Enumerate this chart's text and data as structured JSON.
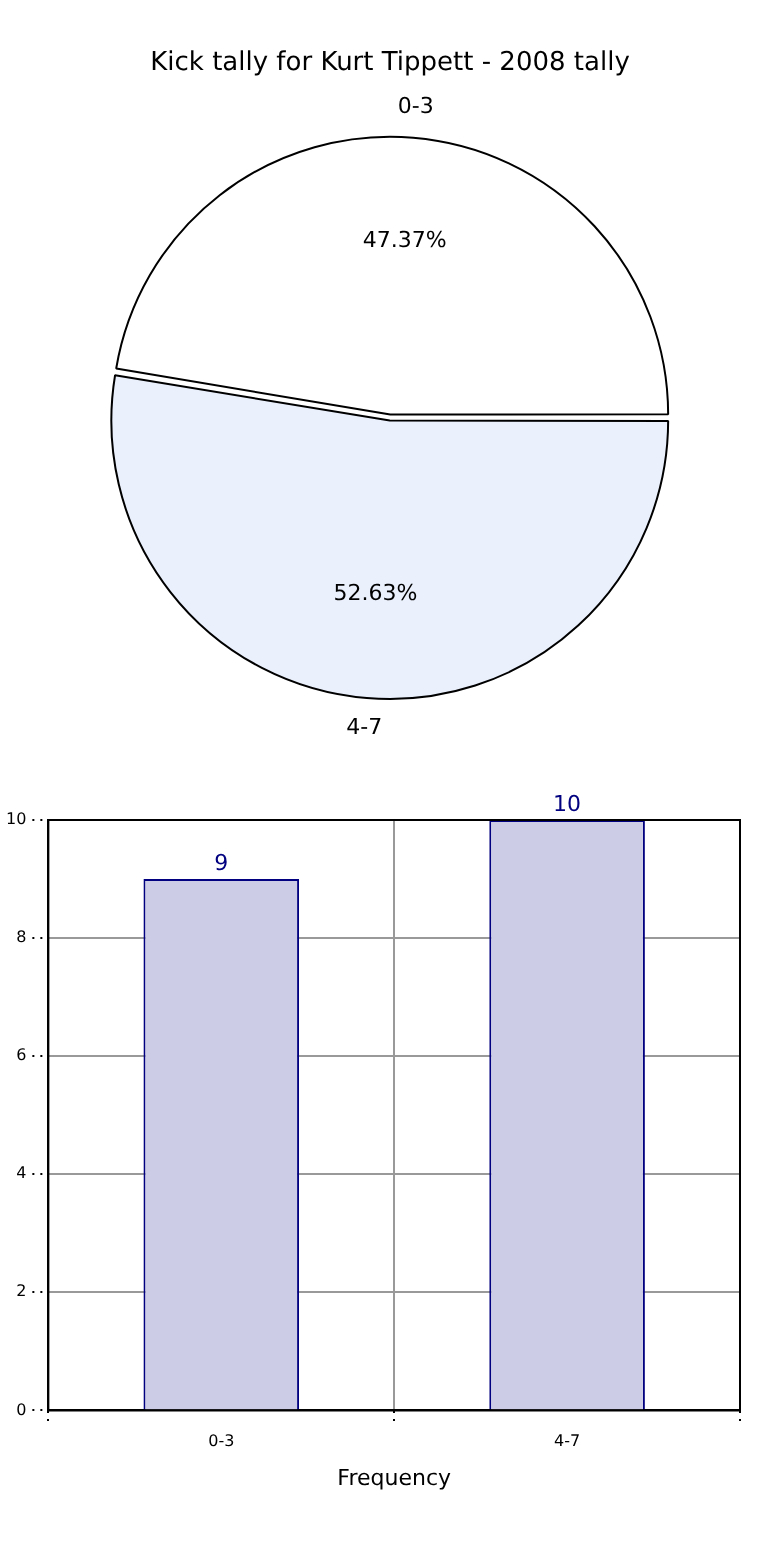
{
  "chart_data": [
    {
      "type": "pie",
      "title": "Kick tally for Kurt Tippett - 2008 tally",
      "categories": [
        "0-3",
        "4-7"
      ],
      "values": [
        47.37,
        52.63
      ],
      "colors": [
        "#ffffff",
        "#eaf0fc"
      ],
      "value_labels": [
        "47.37%",
        "52.63%"
      ],
      "legend": false
    },
    {
      "type": "bar",
      "xlabel": "Frequency",
      "categories": [
        "0-3",
        "4-7"
      ],
      "values": [
        9,
        10
      ],
      "color": "#cccce6",
      "ylim": [
        0,
        10
      ],
      "yticks": [
        0,
        2,
        4,
        6,
        8,
        10
      ],
      "grid": true,
      "data_labels": true,
      "legend": false
    }
  ]
}
